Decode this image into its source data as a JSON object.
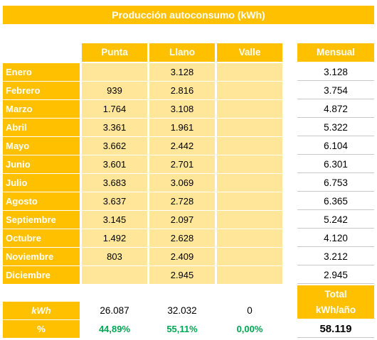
{
  "title": "Producción autoconsumo (kWh)",
  "headers": {
    "punta": "Punta",
    "llano": "Llano",
    "valle": "Valle",
    "mensual": "Mensual"
  },
  "rows": [
    {
      "month": "Enero",
      "punta": "",
      "llano": "3.128",
      "valle": "",
      "mensual": "3.128"
    },
    {
      "month": "Febrero",
      "punta": "939",
      "llano": "2.816",
      "valle": "",
      "mensual": "3.754"
    },
    {
      "month": "Marzo",
      "punta": "1.764",
      "llano": "3.108",
      "valle": "",
      "mensual": "4.872"
    },
    {
      "month": "Abril",
      "punta": "3.361",
      "llano": "1.961",
      "valle": "",
      "mensual": "5.322"
    },
    {
      "month": "Mayo",
      "punta": "3.662",
      "llano": "2.442",
      "valle": "",
      "mensual": "6.104"
    },
    {
      "month": "Junio",
      "punta": "3.601",
      "llano": "2.701",
      "valle": "",
      "mensual": "6.301"
    },
    {
      "month": "Julio",
      "punta": "3.683",
      "llano": "3.069",
      "valle": "",
      "mensual": "6.753"
    },
    {
      "month": "Agosto",
      "punta": "3.637",
      "llano": "2.728",
      "valle": "",
      "mensual": "6.365"
    },
    {
      "month": "Septiembre",
      "punta": "3.145",
      "llano": "2.097",
      "valle": "",
      "mensual": "5.242"
    },
    {
      "month": "Octubre",
      "punta": "1.492",
      "llano": "2.628",
      "valle": "",
      "mensual": "4.120"
    },
    {
      "month": "Noviembre",
      "punta": "803",
      "llano": "2.409",
      "valle": "",
      "mensual": "3.212"
    },
    {
      "month": "Diciembre",
      "punta": "",
      "llano": "2.945",
      "valle": "",
      "mensual": "2.945"
    }
  ],
  "totals": {
    "kwh_label": "kWh",
    "punta": "26.087",
    "llano": "32.032",
    "valle": "0",
    "pct_label": "%",
    "punta_pct": "44,89%",
    "llano_pct": "55,11%",
    "valle_pct": "0,00%",
    "total_label_1": "Total",
    "total_label_2": "kWh/año",
    "grand_total": "58.119"
  },
  "colors": {
    "accent": "#ffc000",
    "cell_fill": "#ffe699",
    "percent_text": "#00a651"
  }
}
